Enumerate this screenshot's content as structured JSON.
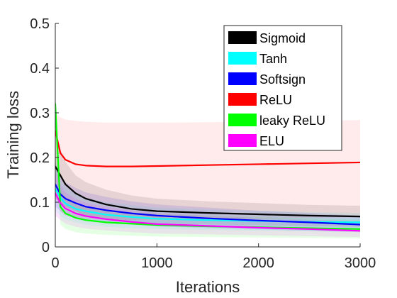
{
  "chart_data": {
    "type": "line",
    "title": "",
    "xlabel": "Iterations",
    "ylabel": "Training loss",
    "xlim": [
      0,
      3000
    ],
    "ylim": [
      0,
      0.5
    ],
    "xticks": [
      0,
      1000,
      2000,
      3000
    ],
    "xtick_labels": [
      "0",
      "1000",
      "2000",
      "3000"
    ],
    "yticks": [
      0,
      0.1,
      0.2,
      0.3,
      0.4,
      0.5
    ],
    "ytick_labels": [
      "0",
      "0.1",
      "0.2",
      "0.3",
      "0.4",
      "0.5"
    ],
    "grid": false,
    "legend_position": "top-right",
    "x": [
      0,
      50,
      100,
      200,
      300,
      500,
      750,
      1000,
      1500,
      2000,
      2500,
      3000
    ],
    "series": [
      {
        "name": "Sigmoid",
        "color": "#000000",
        "values": [
          0.18,
          0.16,
          0.14,
          0.12,
          0.108,
          0.095,
          0.085,
          0.08,
          0.076,
          0.073,
          0.07,
          0.068
        ],
        "band_lower": [
          0.11,
          0.1,
          0.09,
          0.08,
          0.07,
          0.062,
          0.056,
          0.052,
          0.05,
          0.048,
          0.046,
          0.045
        ],
        "band_upper": [
          0.25,
          0.22,
          0.19,
          0.16,
          0.145,
          0.128,
          0.115,
          0.108,
          0.102,
          0.098,
          0.094,
          0.092
        ]
      },
      {
        "name": "Tanh",
        "color": "#00ffff",
        "values": [
          0.13,
          0.11,
          0.097,
          0.085,
          0.08,
          0.072,
          0.067,
          0.063,
          0.06,
          0.058,
          0.056,
          0.055
        ],
        "band_lower": [
          0.08,
          0.07,
          0.062,
          0.055,
          0.05,
          0.045,
          0.042,
          0.04,
          0.038,
          0.036,
          0.035,
          0.034
        ],
        "band_upper": [
          0.18,
          0.15,
          0.135,
          0.118,
          0.11,
          0.1,
          0.094,
          0.088,
          0.084,
          0.081,
          0.078,
          0.076
        ]
      },
      {
        "name": "Softsign",
        "color": "#0000ff",
        "values": [
          0.14,
          0.118,
          0.108,
          0.098,
          0.09,
          0.082,
          0.075,
          0.07,
          0.064,
          0.059,
          0.055,
          0.05
        ],
        "band_lower": [
          0.09,
          0.08,
          0.072,
          0.065,
          0.06,
          0.054,
          0.05,
          0.046,
          0.042,
          0.039,
          0.036,
          0.033
        ],
        "band_upper": [
          0.19,
          0.16,
          0.145,
          0.132,
          0.122,
          0.112,
          0.102,
          0.095,
          0.088,
          0.081,
          0.076,
          0.07
        ]
      },
      {
        "name": "ReLU",
        "color": "#ff0000",
        "values": [
          0.26,
          0.21,
          0.195,
          0.185,
          0.182,
          0.18,
          0.18,
          0.181,
          0.183,
          0.185,
          0.187,
          0.189
        ],
        "band_lower": [
          0.11,
          0.08,
          0.07,
          0.065,
          0.062,
          0.06,
          0.06,
          0.061,
          0.062,
          0.063,
          0.064,
          0.065
        ],
        "band_upper": [
          0.3,
          0.29,
          0.285,
          0.282,
          0.28,
          0.278,
          0.278,
          0.278,
          0.279,
          0.28,
          0.282,
          0.284
        ]
      },
      {
        "name": "leaky ReLU",
        "color": "#00ff00",
        "values": [
          0.32,
          0.09,
          0.075,
          0.065,
          0.06,
          0.055,
          0.052,
          0.049,
          0.046,
          0.044,
          0.042,
          0.04
        ],
        "band_lower": [
          0.2,
          0.05,
          0.04,
          0.033,
          0.03,
          0.027,
          0.025,
          0.023,
          0.022,
          0.021,
          0.02,
          0.019
        ],
        "band_upper": [
          0.34,
          0.13,
          0.11,
          0.098,
          0.09,
          0.082,
          0.078,
          0.074,
          0.07,
          0.067,
          0.064,
          0.061
        ]
      },
      {
        "name": "ELU",
        "color": "#ff00ff",
        "values": [
          0.12,
          0.098,
          0.086,
          0.075,
          0.069,
          0.062,
          0.056,
          0.051,
          0.047,
          0.043,
          0.04,
          0.036
        ],
        "band_lower": [
          0.07,
          0.06,
          0.052,
          0.045,
          0.041,
          0.037,
          0.033,
          0.03,
          0.028,
          0.026,
          0.024,
          0.022
        ],
        "band_upper": [
          0.17,
          0.14,
          0.122,
          0.108,
          0.099,
          0.09,
          0.082,
          0.076,
          0.07,
          0.065,
          0.061,
          0.057
        ]
      }
    ]
  }
}
